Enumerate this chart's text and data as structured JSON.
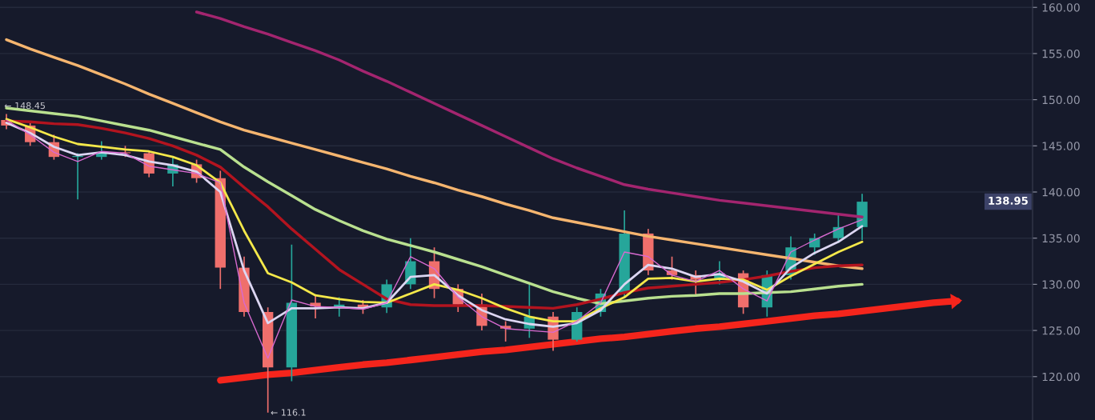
{
  "chart_data": {
    "type": "candlestick",
    "categories": [
      null,
      null,
      null,
      null,
      null,
      null,
      null,
      null,
      null,
      null,
      null,
      null,
      null,
      null,
      null,
      null,
      null,
      null,
      null,
      null,
      null,
      null,
      null,
      null,
      null,
      null,
      null,
      null,
      null,
      null,
      null,
      null,
      null,
      null,
      null,
      null,
      null,
      null,
      null,
      null,
      null,
      null,
      null,
      null
    ],
    "ohlc": [
      [
        147.8,
        148.45,
        146.8,
        147.2
      ],
      [
        147.2,
        147.6,
        145.0,
        145.4
      ],
      [
        145.4,
        146.2,
        143.5,
        143.8
      ],
      [
        143.8,
        144.2,
        139.2,
        143.9
      ],
      [
        143.8,
        145.5,
        143.5,
        144.3
      ],
      [
        144.3,
        145.0,
        143.8,
        144.2
      ],
      [
        144.2,
        144.5,
        141.6,
        142.0
      ],
      [
        142.0,
        143.8,
        140.6,
        143.0
      ],
      [
        143.0,
        143.5,
        141.0,
        141.5
      ],
      [
        141.5,
        142.3,
        129.5,
        131.8
      ],
      [
        131.8,
        133.0,
        126.5,
        127.0
      ],
      [
        127.0,
        127.5,
        116.1,
        121.0
      ],
      [
        121.0,
        134.3,
        119.5,
        128.0
      ],
      [
        128.0,
        128.8,
        126.3,
        127.6
      ],
      [
        127.6,
        128.6,
        126.5,
        127.8
      ],
      [
        127.8,
        128.3,
        126.8,
        127.5
      ],
      [
        127.5,
        130.5,
        126.9,
        130.0
      ],
      [
        130.0,
        135.0,
        129.5,
        132.5
      ],
      [
        132.5,
        134.0,
        128.5,
        129.5
      ],
      [
        129.5,
        130.0,
        127.0,
        127.8
      ],
      [
        127.8,
        129.0,
        125.0,
        125.5
      ],
      [
        125.5,
        126.0,
        123.8,
        125.2
      ],
      [
        125.2,
        130.0,
        124.2,
        126.5
      ],
      [
        126.5,
        127.0,
        122.8,
        124.0
      ],
      [
        124.0,
        127.5,
        123.8,
        127.0
      ],
      [
        127.0,
        129.5,
        126.5,
        129.0
      ],
      [
        129.0,
        138.0,
        128.5,
        135.5
      ],
      [
        135.5,
        136.0,
        131.0,
        131.5
      ],
      [
        131.5,
        133.0,
        130.5,
        131.0
      ],
      [
        131.0,
        131.5,
        128.8,
        130.5
      ],
      [
        130.5,
        132.5,
        130.0,
        131.2
      ],
      [
        131.2,
        131.5,
        126.8,
        127.5
      ],
      [
        127.5,
        131.5,
        126.5,
        131.0
      ],
      [
        131.0,
        135.2,
        130.5,
        134.0
      ],
      [
        134.0,
        135.5,
        133.2,
        135.0
      ],
      [
        135.0,
        137.5,
        134.5,
        136.2
      ],
      [
        136.2,
        139.8,
        134.8,
        138.95
      ],
      null,
      null,
      null,
      null,
      null,
      null,
      null
    ],
    "colors": [
      "#ef6f6c",
      "#ef6f6c",
      "#ef6f6c",
      "#26a69a",
      "#26a69a",
      "#ef6f6c",
      "#ef6f6c",
      "#26a69a",
      "#ef6f6c",
      "#ef6f6c",
      "#ef6f6c",
      "#ef6f6c",
      "#26a69a",
      "#ef6f6c",
      "#26a69a",
      "#ef6f6c",
      "#26a69a",
      "#26a69a",
      "#ef6f6c",
      "#ef6f6c",
      "#ef6f6c",
      "#ef6f6c",
      "#26a69a",
      "#ef6f6c",
      "#26a69a",
      "#26a69a",
      "#26a69a",
      "#ef6f6c",
      "#ef6f6c",
      "#ef6f6c",
      "#26a69a",
      "#ef6f6c",
      "#26a69a",
      "#26a69a",
      "#26a69a",
      "#26a69a",
      "#26a69a",
      null,
      null,
      null,
      null,
      null,
      null,
      null
    ],
    "series": [
      {
        "type": "line",
        "color": "#a3256f",
        "values": [
          null,
          null,
          null,
          null,
          null,
          null,
          null,
          null,
          159.5,
          158.8,
          157.9,
          157.1,
          156.2,
          155.3,
          154.3,
          153.1,
          152.0,
          150.8,
          149.6,
          148.4,
          147.2,
          146.0,
          144.8,
          143.6,
          142.6,
          141.7,
          140.8,
          140.3,
          139.9,
          139.5,
          139.1,
          138.8,
          138.5,
          138.2,
          137.9,
          137.6,
          137.3,
          null,
          null,
          null,
          null,
          null,
          null,
          null
        ]
      },
      {
        "type": "line",
        "color": "#f5b56f",
        "values": [
          156.5,
          155.5,
          154.6,
          153.7,
          152.7,
          151.7,
          150.6,
          149.6,
          148.6,
          147.6,
          146.7,
          146.0,
          145.3,
          144.6,
          143.9,
          143.2,
          142.5,
          141.7,
          141.0,
          140.2,
          139.5,
          138.7,
          138.0,
          137.2,
          136.7,
          136.2,
          135.7,
          135.2,
          134.8,
          134.4,
          134.0,
          133.6,
          133.2,
          132.8,
          132.4,
          132.0,
          131.7,
          null,
          null,
          null,
          null,
          null,
          null,
          null
        ]
      },
      {
        "type": "line",
        "color": "#b9e08f",
        "values": [
          149.1,
          148.8,
          148.5,
          148.2,
          147.7,
          147.2,
          146.7,
          146.0,
          145.3,
          144.6,
          142.7,
          141.1,
          139.6,
          138.1,
          136.9,
          135.8,
          134.9,
          134.2,
          133.5,
          132.7,
          131.9,
          131.0,
          130.1,
          129.2,
          128.5,
          127.9,
          128.2,
          128.5,
          128.7,
          128.8,
          129.0,
          129.0,
          129.1,
          129.2,
          129.5,
          129.8,
          130.0,
          null,
          null,
          null,
          null,
          null,
          null,
          null
        ]
      },
      {
        "type": "line",
        "color": "#b3141f",
        "values": [
          147.7,
          147.6,
          147.4,
          147.3,
          146.9,
          146.4,
          145.8,
          145.0,
          144.0,
          142.7,
          140.5,
          138.4,
          136.0,
          133.8,
          131.6,
          130.0,
          128.4,
          127.8,
          127.7,
          127.7,
          127.7,
          127.6,
          127.5,
          127.4,
          127.8,
          128.4,
          129.1,
          129.6,
          129.8,
          130.0,
          130.2,
          130.5,
          130.9,
          131.4,
          131.8,
          132.0,
          132.1,
          null,
          null,
          null,
          null,
          null,
          null,
          null
        ]
      },
      {
        "type": "line",
        "color": "#f4e84a",
        "values": [
          147.9,
          147.0,
          146.0,
          145.2,
          144.9,
          144.6,
          144.4,
          143.8,
          142.9,
          141.0,
          135.8,
          131.2,
          130.2,
          128.8,
          128.4,
          128.1,
          128.0,
          129.0,
          130.0,
          129.4,
          128.5,
          127.4,
          126.5,
          126.0,
          126.0,
          127.4,
          128.6,
          130.6,
          130.7,
          130.3,
          130.6,
          130.5,
          129.4,
          130.9,
          132.2,
          133.5,
          134.6,
          null,
          null,
          null,
          null,
          null,
          null,
          null
        ]
      },
      {
        "type": "line",
        "color": "#dcd6f2",
        "values": [
          147.5,
          146.4,
          144.9,
          144.0,
          144.3,
          144.0,
          143.3,
          142.9,
          142.2,
          140.0,
          131.5,
          125.8,
          127.4,
          127.4,
          127.5,
          127.4,
          128.0,
          130.8,
          131.0,
          128.8,
          127.2,
          126.2,
          125.7,
          125.4,
          125.8,
          127.2,
          130.0,
          132.1,
          131.7,
          130.8,
          131.1,
          130.3,
          129.0,
          131.8,
          133.4,
          134.6,
          136.3,
          null,
          null,
          null,
          null,
          null,
          null,
          null
        ]
      },
      {
        "type": "line",
        "color": "#d86ad0",
        "values": [
          147.8,
          146.2,
          144.3,
          143.3,
          144.4,
          144.2,
          142.8,
          142.4,
          142.0,
          141.0,
          128.0,
          122.0,
          128.3,
          127.6,
          127.5,
          127.3,
          128.0,
          133.0,
          131.7,
          128.6,
          126.5,
          125.2,
          125.0,
          124.8,
          126.0,
          128.0,
          133.5,
          133.0,
          131.0,
          130.3,
          131.5,
          129.5,
          128.2,
          133.5,
          134.8,
          136.0,
          137.0,
          null,
          null,
          null,
          null,
          null,
          null,
          null
        ]
      },
      {
        "type": "line",
        "color": "#f5251c",
        "values": [
          null,
          null,
          null,
          null,
          null,
          null,
          null,
          null,
          null,
          119.6,
          119.9,
          120.2,
          120.4,
          120.7,
          121.0,
          121.3,
          121.5,
          121.8,
          122.1,
          122.4,
          122.7,
          122.9,
          123.2,
          123.5,
          123.8,
          124.1,
          124.3,
          124.6,
          124.9,
          125.2,
          125.4,
          125.7,
          126.0,
          126.3,
          126.6,
          126.8,
          127.1,
          127.4,
          127.7,
          128.0,
          128.2,
          null,
          null,
          null
        ]
      }
    ],
    "ylim": [
      115.3,
      160.8
    ],
    "yticks": [
      {
        "value": 120,
        "label": "120.00"
      },
      {
        "value": 125,
        "label": "125.00"
      },
      {
        "value": 130,
        "label": "130.00"
      },
      {
        "value": 135,
        "label": "135.00"
      },
      {
        "value": 140,
        "label": "140.00"
      },
      {
        "value": 145,
        "label": "145.00"
      },
      {
        "value": 150,
        "label": "150.00"
      },
      {
        "value": 155,
        "label": "155.00"
      },
      {
        "value": 160,
        "label": "160.00"
      }
    ],
    "tick_labels": "y",
    "grid": "y",
    "annotations": [
      {
        "text": "← 148.45",
        "y": 148.45
      },
      "← 116.1",
      "138.95"
    ]
  }
}
